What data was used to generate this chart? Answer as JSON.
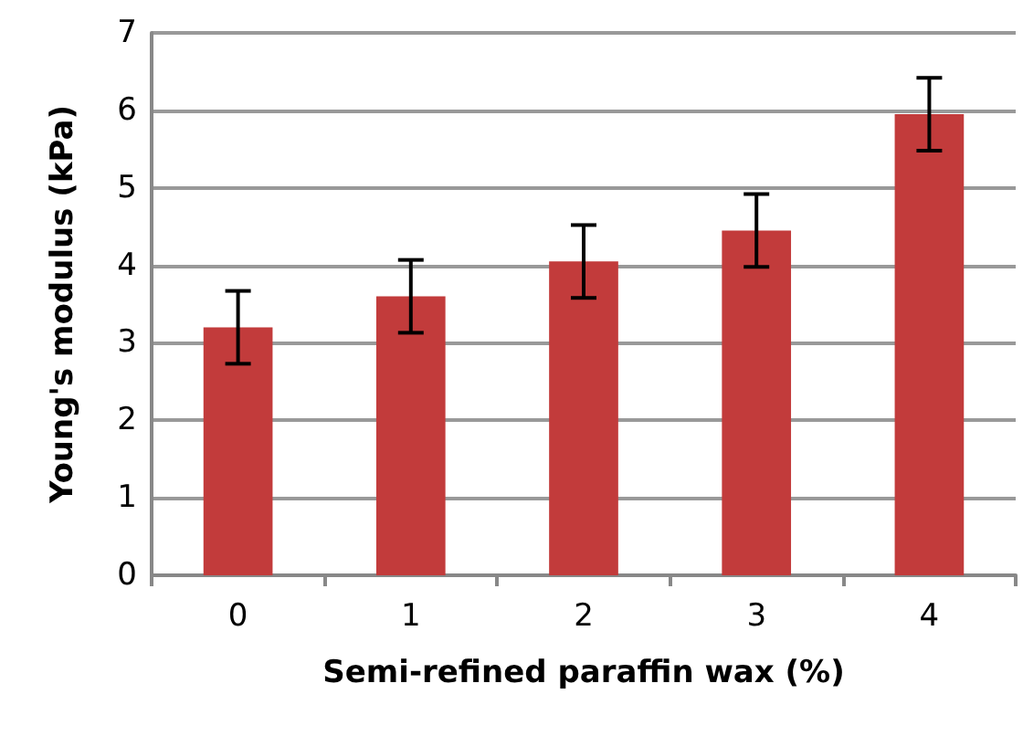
{
  "chart_data": {
    "type": "bar",
    "xlabel": "Semi-refined paraffin wax (%)",
    "ylabel": "Young's modulus (kPa)",
    "categories": [
      "0",
      "1",
      "2",
      "3",
      "4"
    ],
    "values": [
      3.2,
      3.6,
      4.05,
      4.45,
      5.95
    ],
    "errors": [
      0.47,
      0.47,
      0.47,
      0.47,
      0.47
    ],
    "color": "#c23b3b",
    "ylim": [
      0,
      7
    ],
    "yticks": [
      0,
      1,
      2,
      3,
      4,
      5,
      6,
      7
    ],
    "grid": "y"
  }
}
